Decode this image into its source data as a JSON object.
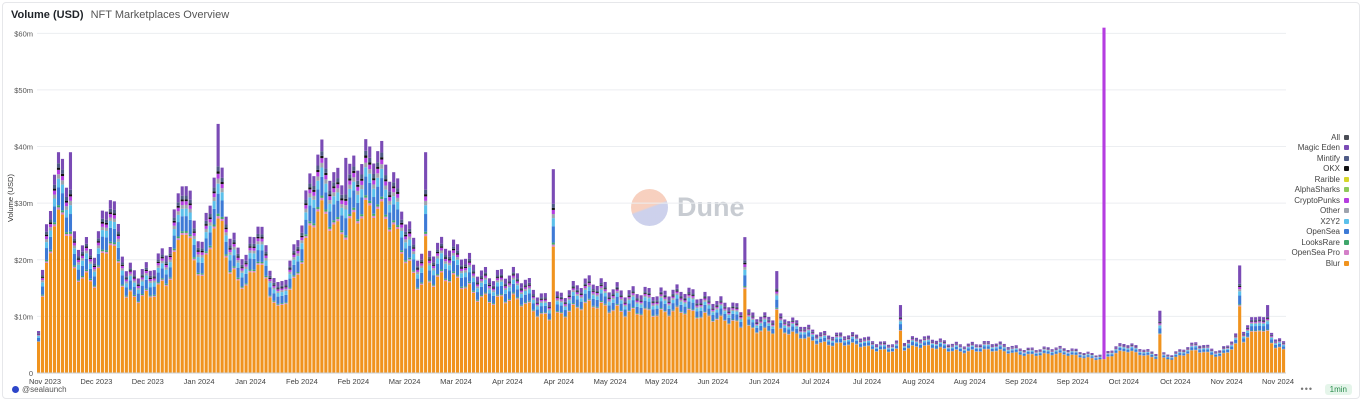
{
  "header": {
    "title": "Volume (USD)",
    "subtitle": "NFT Marketplaces Overview"
  },
  "footer": {
    "author": "@sealaunch",
    "more": "•••",
    "refresh": "1min"
  },
  "watermark": {
    "text": "Dune"
  },
  "legend": [
    {
      "name": "All",
      "color": "#4a4d55"
    },
    {
      "name": "Magic Eden",
      "color": "#7a4bb5"
    },
    {
      "name": "Mintify",
      "color": "#4f5b86"
    },
    {
      "name": "OKX",
      "color": "#111111"
    },
    {
      "name": "Rarible",
      "color": "#d6d62a"
    },
    {
      "name": "AlphaSharks",
      "color": "#8ec95a"
    },
    {
      "name": "CryptoPunks",
      "color": "#b53de0"
    },
    {
      "name": "Other",
      "color": "#9ea3ad"
    },
    {
      "name": "X2Y2",
      "color": "#5bc0eb"
    },
    {
      "name": "OpenSea",
      "color": "#3d7ad6"
    },
    {
      "name": "LooksRare",
      "color": "#3fa66a"
    },
    {
      "name": "OpenSea Pro",
      "color": "#d47fc8"
    },
    {
      "name": "Blur",
      "color": "#f0931e"
    }
  ],
  "chart_data": {
    "type": "bar",
    "stacked": true,
    "ylabel": "Volume (USD)",
    "ylim": [
      0,
      62
    ],
    "yticks": [
      0,
      10,
      20,
      30,
      40,
      50,
      60
    ],
    "ytick_labels": [
      "0",
      "$10m",
      "$20m",
      "$30m",
      "$40m",
      "$50m",
      "$60m"
    ],
    "xtick_labels": [
      "Nov 2023",
      "Dec 2023",
      "Dec 2023",
      "Jan 2024",
      "Jan 2024",
      "Feb 2024",
      "Feb 2024",
      "Mar 2024",
      "Mar 2024",
      "Apr 2024",
      "Apr 2024",
      "May 2024",
      "May 2024",
      "Jun 2024",
      "Jun 2024",
      "Jul 2024",
      "Jul 2024",
      "Aug 2024",
      "Aug 2024",
      "Sep 2024",
      "Sep 2024",
      "Oct 2024",
      "Oct 2024",
      "Nov 2024",
      "Nov 2024"
    ],
    "grid": true,
    "legend_position": "right",
    "value_unit": "$ millions",
    "anchors": [
      [
        0,
        7.0
      ],
      [
        2,
        25.0
      ],
      [
        6,
        40.0
      ],
      [
        9,
        26.0
      ],
      [
        14,
        22.0
      ],
      [
        18,
        30.0
      ],
      [
        22,
        18.0
      ],
      [
        28,
        20.0
      ],
      [
        33,
        22.0
      ],
      [
        36,
        33.0
      ],
      [
        41,
        23.0
      ],
      [
        45,
        44.0
      ],
      [
        48,
        24.0
      ],
      [
        52,
        19.0
      ],
      [
        55,
        26.0
      ],
      [
        60,
        16.0
      ],
      [
        64,
        22.0
      ],
      [
        70,
        37.0
      ],
      [
        75,
        35.0
      ],
      [
        80,
        40.0
      ],
      [
        84,
        38.0
      ],
      [
        90,
        32.0
      ],
      [
        95,
        23.0
      ],
      [
        100,
        22.0
      ],
      [
        108,
        20.0
      ],
      [
        118,
        17.0
      ],
      [
        126,
        14.0
      ],
      [
        135,
        15.0
      ],
      [
        145,
        16.0
      ],
      [
        155,
        13.0
      ],
      [
        162,
        16.0
      ],
      [
        170,
        12.0
      ],
      [
        180,
        11.0
      ],
      [
        190,
        8.5
      ],
      [
        200,
        7.0
      ],
      [
        210,
        5.5
      ],
      [
        220,
        6.0
      ],
      [
        230,
        5.5
      ],
      [
        240,
        5.0
      ],
      [
        250,
        4.5
      ],
      [
        260,
        4.0
      ],
      [
        266,
        3.5
      ],
      [
        272,
        5.0
      ],
      [
        278,
        4.0
      ],
      [
        284,
        3.5
      ],
      [
        290,
        5.0
      ],
      [
        296,
        4.0
      ],
      [
        300,
        7.0
      ],
      [
        306,
        10.0
      ],
      [
        310,
        6.0
      ],
      [
        312,
        5.5
      ]
    ],
    "highlights": [
      [
        8,
        39.0
      ],
      [
        45,
        44.0
      ],
      [
        77,
        38.0
      ],
      [
        97,
        39.0
      ],
      [
        129,
        36.0
      ],
      [
        177,
        24.0
      ],
      [
        185,
        18.0
      ],
      [
        216,
        12.0
      ],
      [
        267,
        61.0
      ],
      [
        281,
        11.0
      ],
      [
        301,
        19.0
      ],
      [
        308,
        12.0
      ]
    ],
    "series_order": [
      "Blur",
      "OpenSea Pro",
      "LooksRare",
      "OpenSea",
      "X2Y2",
      "Other",
      "CryptoPunks",
      "AlphaSharks",
      "Rarible",
      "OKX",
      "Mintify",
      "Magic Eden",
      "All"
    ],
    "series_share": [
      0.74,
      0.01,
      0.01,
      0.08,
      0.04,
      0.02,
      0.02,
      0.0,
      0.0,
      0.01,
      0.02,
      0.05,
      0.0
    ]
  }
}
